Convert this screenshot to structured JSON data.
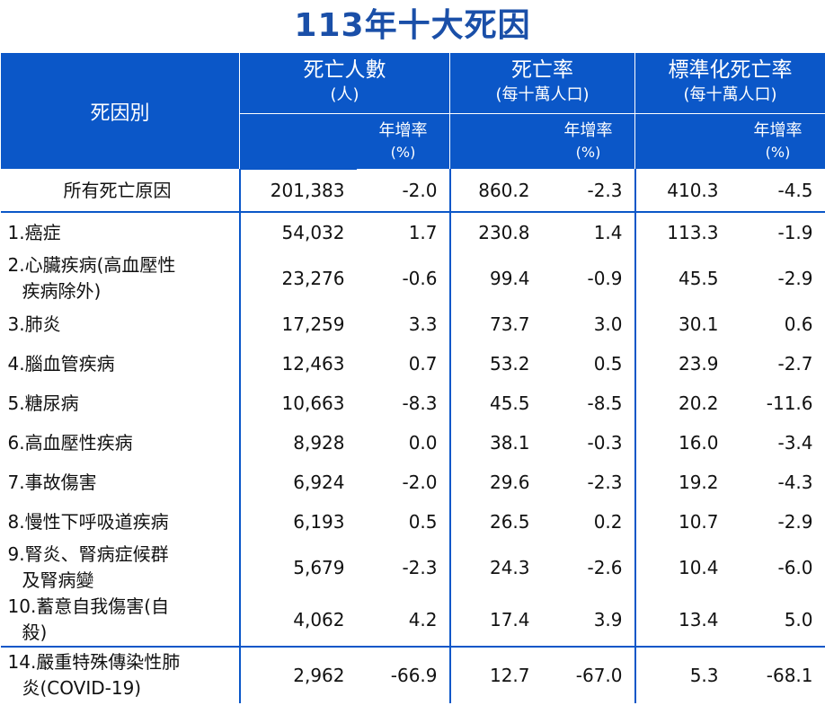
{
  "title": "113年十大死因",
  "headers": {
    "cause": "死因別",
    "deaths": "死亡人數",
    "deaths_unit": "(人)",
    "rate": "死亡率",
    "rate_unit": "(每十萬人口)",
    "std": "標準化死亡率",
    "std_unit": "(每十萬人口)",
    "yoy": "年增率",
    "pct": "(%)"
  },
  "chart_data": {
    "type": "table",
    "title": "113年十大死因",
    "columns": [
      "死因別",
      "死亡人數(人)",
      "年增率(%)",
      "死亡率(每十萬人口)",
      "年增率(%)",
      "標準化死亡率(每十萬人口)",
      "年增率(%)"
    ],
    "rows": [
      {
        "name": "所有死亡原因",
        "name2": "",
        "deaths": "201,383",
        "deaths_yoy": "-2.0",
        "rate": "860.2",
        "rate_yoy": "-2.3",
        "std": "410.3",
        "std_yoy": "-4.5"
      },
      {
        "name": "1.癌症",
        "name2": "",
        "deaths": "54,032",
        "deaths_yoy": "1.7",
        "rate": "230.8",
        "rate_yoy": "1.4",
        "std": "113.3",
        "std_yoy": "-1.9"
      },
      {
        "name": "2.心臟疾病(高血壓性",
        "name2": "疾病除外)",
        "deaths": "23,276",
        "deaths_yoy": "-0.6",
        "rate": "99.4",
        "rate_yoy": "-0.9",
        "std": "45.5",
        "std_yoy": "-2.9"
      },
      {
        "name": "3.肺炎",
        "name2": "",
        "deaths": "17,259",
        "deaths_yoy": "3.3",
        "rate": "73.7",
        "rate_yoy": "3.0",
        "std": "30.1",
        "std_yoy": "0.6"
      },
      {
        "name": "4.腦血管疾病",
        "name2": "",
        "deaths": "12,463",
        "deaths_yoy": "0.7",
        "rate": "53.2",
        "rate_yoy": "0.5",
        "std": "23.9",
        "std_yoy": "-2.7"
      },
      {
        "name": "5.糖尿病",
        "name2": "",
        "deaths": "10,663",
        "deaths_yoy": "-8.3",
        "rate": "45.5",
        "rate_yoy": "-8.5",
        "std": "20.2",
        "std_yoy": "-11.6"
      },
      {
        "name": "6.高血壓性疾病",
        "name2": "",
        "deaths": "8,928",
        "deaths_yoy": "0.0",
        "rate": "38.1",
        "rate_yoy": "-0.3",
        "std": "16.0",
        "std_yoy": "-3.4"
      },
      {
        "name": "7.事故傷害",
        "name2": "",
        "deaths": "6,924",
        "deaths_yoy": "-2.0",
        "rate": "29.6",
        "rate_yoy": "-2.3",
        "std": "19.2",
        "std_yoy": "-4.3"
      },
      {
        "name": "8.慢性下呼吸道疾病",
        "name2": "",
        "deaths": "6,193",
        "deaths_yoy": "0.5",
        "rate": "26.5",
        "rate_yoy": "0.2",
        "std": "10.7",
        "std_yoy": "-2.9"
      },
      {
        "name": "9.腎炎、腎病症候群",
        "name2": "及腎病變",
        "deaths": "5,679",
        "deaths_yoy": "-2.3",
        "rate": "24.3",
        "rate_yoy": "-2.6",
        "std": "10.4",
        "std_yoy": "-6.0"
      },
      {
        "name": "10.蓄意自我傷害(自",
        "name2": "殺)",
        "deaths": "4,062",
        "deaths_yoy": "4.2",
        "rate": "17.4",
        "rate_yoy": "3.9",
        "std": "13.4",
        "std_yoy": "5.0"
      },
      {
        "name": "14.嚴重特殊傳染性肺",
        "name2": "炎(COVID-19)",
        "deaths": "2,962",
        "deaths_yoy": "-66.9",
        "rate": "12.7",
        "rate_yoy": "-67.0",
        "std": "5.3",
        "std_yoy": "-68.1"
      }
    ]
  }
}
